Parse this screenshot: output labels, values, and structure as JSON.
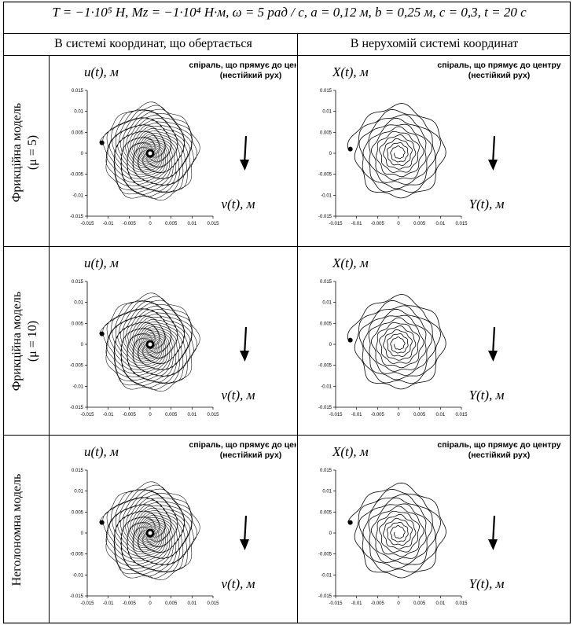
{
  "header": {
    "formula": "T = −1·10⁵ H, Mz = −1·10⁴ H·м, ω = 5 рад / с, a = 0,12 м, b = 0,25 м, c = 0,3, t = 20 c"
  },
  "columns": [
    "В системі координат, що обертається",
    "В нерухомій системі координат"
  ],
  "rows": [
    {
      "label_line1": "Фрикційна модель",
      "label_line2": "(μ = 5)"
    },
    {
      "label_line1": "Фрикційна модель",
      "label_line2": "(μ = 10)"
    },
    {
      "label_line1": "Неголономна модель",
      "label_line2": ""
    }
  ],
  "chart_data": [
    {
      "type": "line",
      "row": 1,
      "frame": "rotating",
      "ylabel": "u(t), м",
      "xlabel": "v(t), м",
      "annotation": [
        "спіраль, що прямує до центру",
        "(нестійкий рух)"
      ],
      "xlim": [
        -0.015,
        0.015
      ],
      "ylim": [
        -0.015,
        0.015
      ],
      "xticks": [
        "-0.015",
        "-0.01",
        "-0.005",
        "0",
        "0.005",
        "0.01",
        "0.015"
      ],
      "yticks": [
        "-0.015",
        "-0.01",
        "-0.005",
        "0",
        "0.005",
        "0.01",
        "0.015"
      ],
      "start_point": {
        "x": -0.0115,
        "y": 0.0025
      },
      "outer_radius": 0.0115,
      "inner_radius": 0.001,
      "turns": 30
    },
    {
      "type": "line",
      "row": 1,
      "frame": "fixed",
      "ylabel": "X(t), м",
      "xlabel": "Y(t), м",
      "annotation": [
        "спіраль, що прямує до центру",
        "(нестійкий рух)"
      ],
      "xlim": [
        -0.015,
        0.015
      ],
      "ylim": [
        -0.015,
        0.015
      ],
      "xticks": [
        "-0.015",
        "-0.01",
        "-0.005",
        "0",
        "0.005",
        "0.01",
        "0.015"
      ],
      "yticks": [
        "-0.015",
        "-0.01",
        "-0.005",
        "0",
        "0.005",
        "0.01",
        "0.015"
      ],
      "start_point": {
        "x": -0.0115,
        "y": 0.001
      },
      "outer_radius": 0.0115,
      "inner_radius": 0.001,
      "turns": 11
    },
    {
      "type": "line",
      "row": 2,
      "frame": "rotating",
      "ylabel": "u(t), м",
      "xlabel": "v(t), м",
      "annotation": [],
      "xlim": [
        -0.015,
        0.015
      ],
      "ylim": [
        -0.015,
        0.015
      ],
      "xticks": [
        "-0.015",
        "-0.01",
        "-0.005",
        "0",
        "0.005",
        "0.01",
        "0.015"
      ],
      "yticks": [
        "-0.015",
        "-0.01",
        "-0.005",
        "0",
        "0.005",
        "0.01",
        "0.015"
      ],
      "start_point": {
        "x": -0.0115,
        "y": 0.0025
      },
      "outer_radius": 0.0115,
      "inner_radius": 0.001,
      "turns": 30
    },
    {
      "type": "line",
      "row": 2,
      "frame": "fixed",
      "ylabel": "X(t), м",
      "xlabel": "Y(t), м",
      "annotation": [],
      "xlim": [
        -0.015,
        0.015
      ],
      "ylim": [
        -0.015,
        0.015
      ],
      "xticks": [
        "-0.015",
        "-0.01",
        "-0.005",
        "0",
        "0.005",
        "0.01",
        "0.015"
      ],
      "yticks": [
        "-0.015",
        "-0.01",
        "-0.005",
        "0",
        "0.005",
        "0.01",
        "0.015"
      ],
      "start_point": {
        "x": -0.0115,
        "y": 0.001
      },
      "outer_radius": 0.0115,
      "inner_radius": 0.001,
      "turns": 11
    },
    {
      "type": "line",
      "row": 3,
      "frame": "rotating",
      "ylabel": "u(t), м",
      "xlabel": "v(t), м",
      "annotation": [
        "спіраль, що прямує до центру",
        "(нестійкий рух)"
      ],
      "xlim": [
        -0.015,
        0.015
      ],
      "ylim": [
        -0.015,
        0.015
      ],
      "xticks": [
        "-0.015",
        "-0.01",
        "-0.005",
        "0",
        "0.005",
        "0.01",
        "0.015"
      ],
      "yticks": [
        "-0.015",
        "-0.01",
        "-0.005",
        "0",
        "0.005",
        "0.01",
        "0.015"
      ],
      "start_point": {
        "x": -0.0115,
        "y": 0.0025
      },
      "outer_radius": 0.0115,
      "inner_radius": 0.001,
      "turns": 30
    },
    {
      "type": "line",
      "row": 3,
      "frame": "fixed",
      "ylabel": "X(t), м",
      "xlabel": "Y(t), м",
      "annotation": [
        "спіраль, що прямує до центру",
        "(нестійкий рух)"
      ],
      "xlim": [
        -0.015,
        0.015
      ],
      "ylim": [
        -0.015,
        0.015
      ],
      "xticks": [
        "-0.015",
        "-0.01",
        "-0.005",
        "0",
        "0.005",
        "0.01",
        "0.015"
      ],
      "yticks": [
        "-0.015",
        "-0.01",
        "-0.005",
        "0",
        "0.005",
        "0.01",
        "0.015"
      ],
      "start_point": {
        "x": -0.0115,
        "y": 0.0025
      },
      "outer_radius": 0.0115,
      "inner_radius": 0.001,
      "turns": 11
    }
  ]
}
